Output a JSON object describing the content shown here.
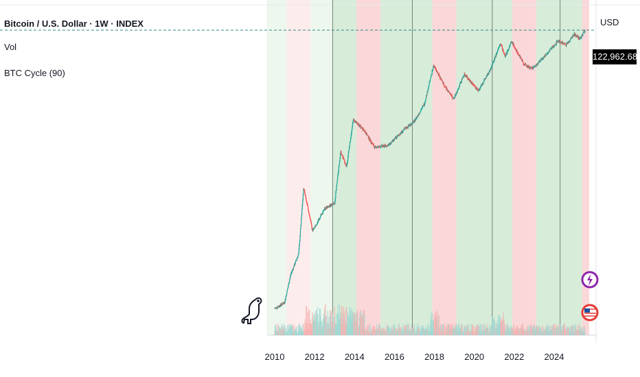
{
  "legend": {
    "title": "Bitcoin / U.S. Dollar · 1W · INDEX",
    "vol": "Vol",
    "cycle": "BTC Cycle (90)"
  },
  "price_axis": {
    "currency": "USD",
    "last_price": "122,962.68"
  },
  "icons": {
    "mascot": "dinosaur-logo-icon",
    "lightning": "lightning-event-icon",
    "flag": "us-flag-event-icon"
  },
  "colors": {
    "candle_up": "#26a69a",
    "candle_down": "#ef5350",
    "bull_zone": "#d7ecd9",
    "bear_zone": "#fad7d8",
    "bull_zone_light": "#eef7ee",
    "bear_zone_light": "#fdecec",
    "last_price_bg": "#000000"
  },
  "chart_data": {
    "type": "line",
    "title": "Bitcoin / U.S. Dollar · 1W · INDEX",
    "y_scale": "log",
    "x_ticks": [
      "2010",
      "2012",
      "2014",
      "2016",
      "2018",
      "2020",
      "2022",
      "2024"
    ],
    "series": [
      {
        "x": [
          2010.0,
          2010.3,
          2010.5,
          2010.8,
          2011.2,
          2011.45,
          2011.9,
          2012.5,
          2013.0,
          2013.3,
          2013.6,
          2013.93,
          2014.5,
          2015.0,
          2015.7,
          2016.5,
          2017.0,
          2017.5,
          2017.96,
          2018.5,
          2018.96,
          2019.5,
          2020.2,
          2020.8,
          2021.3,
          2021.55,
          2021.86,
          2022.5,
          2022.9,
          2023.5,
          2024.2,
          2024.6,
          2025.0,
          2025.3,
          2025.55
        ],
        "values": [
          0.05,
          0.06,
          0.07,
          0.3,
          0.9,
          30,
          3,
          10,
          13,
          200,
          90,
          1100,
          600,
          250,
          280,
          650,
          1000,
          2500,
          19000,
          6500,
          3200,
          12000,
          5000,
          15000,
          63000,
          30000,
          68000,
          20000,
          16000,
          30000,
          70000,
          56000,
          100000,
          78000,
          122962.68
        ]
      }
    ],
    "cycle_zones": [
      {
        "start": 2009.6,
        "end": 2010.6,
        "phase": "bull"
      },
      {
        "start": 2010.6,
        "end": 2011.8,
        "phase": "bear"
      },
      {
        "start": 2011.8,
        "end": 2012.9,
        "phase": "bull"
      },
      {
        "start": 2012.9,
        "end": 2014.1,
        "phase": "bull"
      },
      {
        "start": 2014.1,
        "end": 2015.3,
        "phase": "bear"
      },
      {
        "start": 2015.3,
        "end": 2016.9,
        "phase": "bull"
      },
      {
        "start": 2016.9,
        "end": 2017.9,
        "phase": "bull"
      },
      {
        "start": 2017.9,
        "end": 2019.1,
        "phase": "bear"
      },
      {
        "start": 2019.1,
        "end": 2020.9,
        "phase": "bull"
      },
      {
        "start": 2020.9,
        "end": 2021.9,
        "phase": "bull"
      },
      {
        "start": 2021.9,
        "end": 2023.1,
        "phase": "bear"
      },
      {
        "start": 2023.1,
        "end": 2024.3,
        "phase": "bull"
      },
      {
        "start": 2024.3,
        "end": 2025.4,
        "phase": "bull"
      },
      {
        "start": 2025.4,
        "end": 2025.75,
        "phase": "bear"
      }
    ],
    "cycle_lines": [
      2012.9,
      2016.9,
      2020.9,
      2024.3
    ],
    "last_value": 122962.68
  }
}
